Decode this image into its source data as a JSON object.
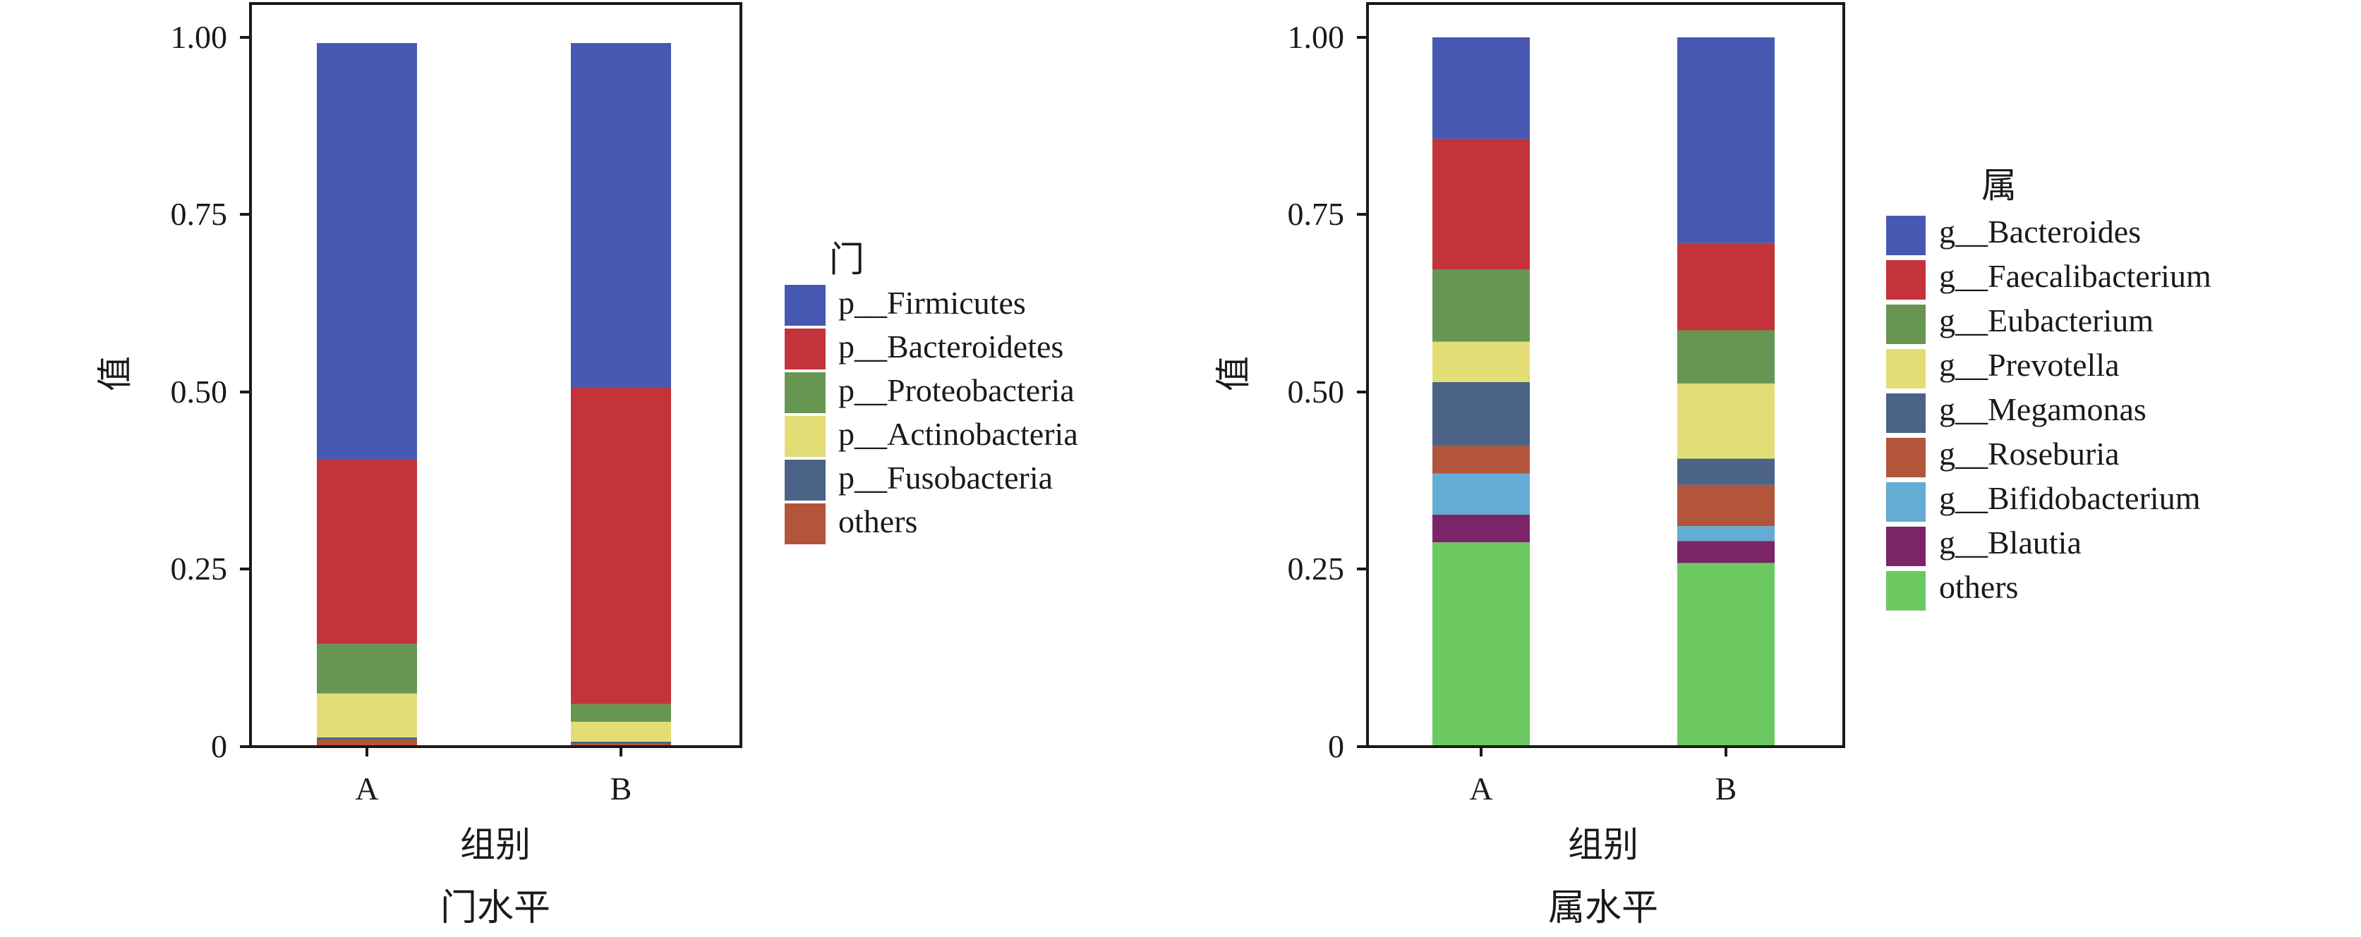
{
  "chart_data": [
    {
      "type": "bar",
      "stacked": true,
      "title": "门水平",
      "xlabel": "组别",
      "ylabel": "值",
      "ylim": [
        0,
        1
      ],
      "yticks": [
        {
          "value": 0,
          "label": "0"
        },
        {
          "value": 0.25,
          "label": "0.25"
        },
        {
          "value": 0.5,
          "label": "0.50"
        },
        {
          "value": 0.75,
          "label": "0.75"
        },
        {
          "value": 1,
          "label": "1.00"
        }
      ],
      "grid": false,
      "legend_position": "right",
      "legend_title": "门",
      "categories": [
        "A",
        "B"
      ],
      "series": [
        {
          "name": "p__Firmicutes",
          "color": "#4758b3",
          "values": [
            0.587,
            0.485
          ]
        },
        {
          "name": "p__Bacteroidetes",
          "color": "#c33339",
          "values": [
            0.26,
            0.447
          ]
        },
        {
          "name": "p__Proteobacteria",
          "color": "#679652",
          "values": [
            0.07,
            0.025
          ]
        },
        {
          "name": "p__Actinobacteria",
          "color": "#e3dd76",
          "values": [
            0.062,
            0.028
          ]
        },
        {
          "name": "p__Fusobacteria",
          "color": "#4a6386",
          "values": [
            0.003,
            0.003
          ]
        },
        {
          "name": "others",
          "color": "#b2553b",
          "values": [
            0.01,
            0.004
          ]
        }
      ]
    },
    {
      "type": "bar",
      "stacked": true,
      "title": "属水平",
      "xlabel": "组别",
      "ylabel": "值",
      "ylim": [
        0,
        1
      ],
      "yticks": [
        {
          "value": 0,
          "label": "0"
        },
        {
          "value": 0.25,
          "label": "0.25"
        },
        {
          "value": 0.5,
          "label": "0.50"
        },
        {
          "value": 0.75,
          "label": "0.75"
        },
        {
          "value": 1,
          "label": "1.00"
        }
      ],
      "grid": false,
      "legend_position": "right",
      "legend_title": "属",
      "categories": [
        "A",
        "B"
      ],
      "series": [
        {
          "name": "g__Bacteroides",
          "color": "#4758b3",
          "values": [
            0.143,
            0.29
          ]
        },
        {
          "name": "g__Faecalibacterium",
          "color": "#c33339",
          "values": [
            0.184,
            0.123
          ]
        },
        {
          "name": "g__Eubacterium",
          "color": "#679652",
          "values": [
            0.102,
            0.075
          ]
        },
        {
          "name": "g__Prevotella",
          "color": "#e3dd76",
          "values": [
            0.057,
            0.106
          ]
        },
        {
          "name": "g__Megamonas",
          "color": "#4a6386",
          "values": [
            0.09,
            0.037
          ]
        },
        {
          "name": "g__Roseburia",
          "color": "#b2553b",
          "values": [
            0.039,
            0.058
          ]
        },
        {
          "name": "g__Bifidobacterium",
          "color": "#64acd4",
          "values": [
            0.058,
            0.021
          ]
        },
        {
          "name": "g__Blautia",
          "color": "#7b2468",
          "values": [
            0.039,
            0.031
          ]
        },
        {
          "name": "others",
          "color": "#6cc962",
          "values": [
            0.288,
            0.259
          ]
        }
      ]
    }
  ]
}
